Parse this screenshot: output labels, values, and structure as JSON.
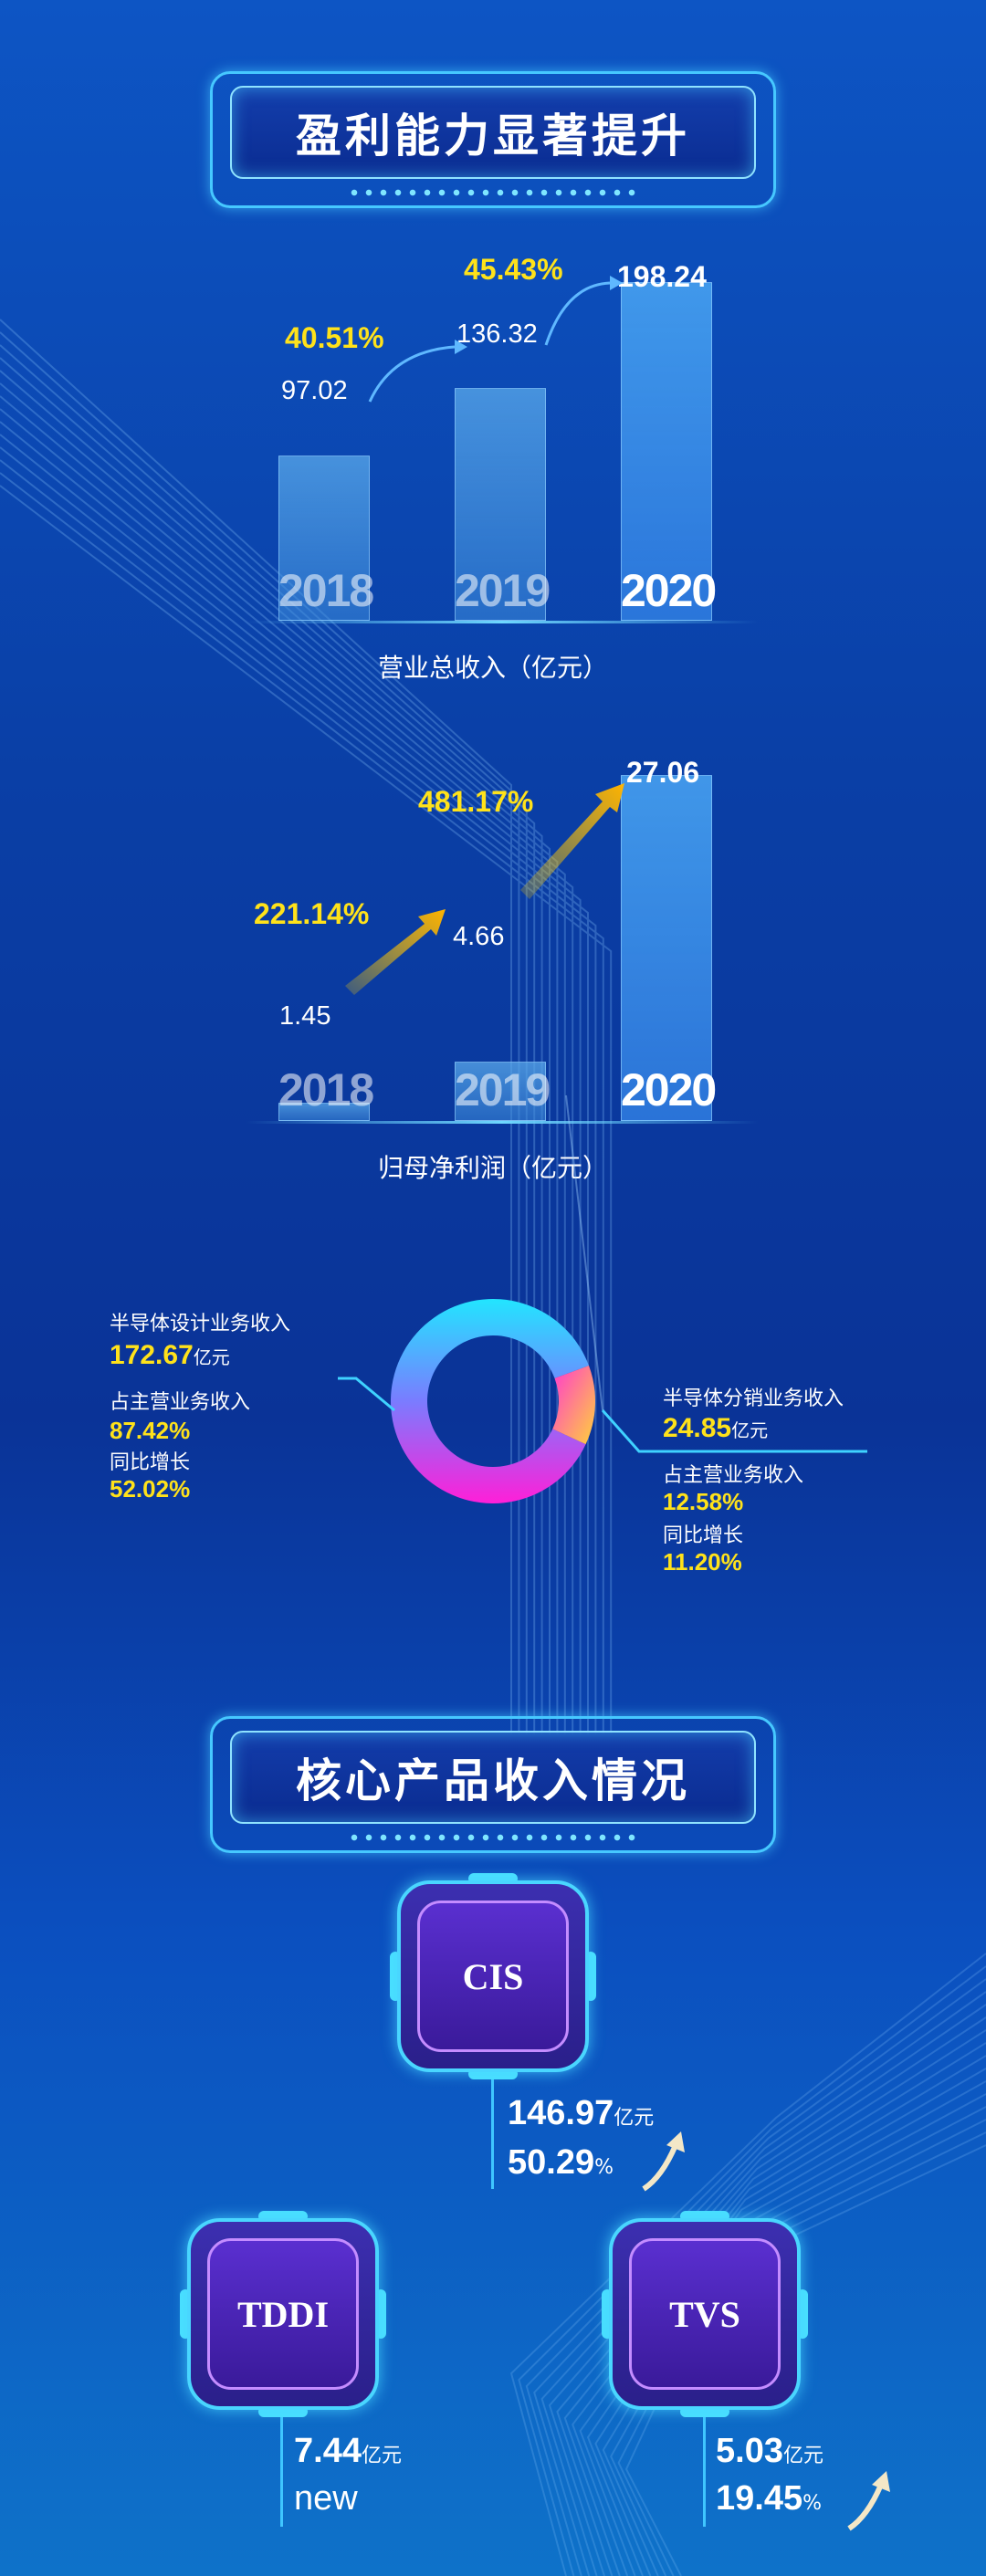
{
  "section1": {
    "title": "盈利能力显著提升"
  },
  "section2": {
    "title": "核心产品收入情况"
  },
  "chart_data": [
    {
      "type": "bar",
      "xlabel": "营业总收入（亿元）",
      "categories": [
        "2018",
        "2019",
        "2020"
      ],
      "values": [
        97.02,
        136.32,
        198.24
      ],
      "value_labels": [
        "97.02",
        "136.32",
        "198.24"
      ],
      "growth_labels": [
        "40.51%",
        "45.43%"
      ],
      "ylim": [
        0,
        215
      ]
    },
    {
      "type": "bar",
      "xlabel": "归母净利润（亿元）",
      "categories": [
        "2018",
        "2019",
        "2020"
      ],
      "values": [
        1.45,
        4.66,
        27.06
      ],
      "value_labels": [
        "1.45",
        "4.66",
        "27.06"
      ],
      "growth_labels": [
        "221.14%",
        "481.17%"
      ],
      "ylim": [
        0,
        30
      ]
    },
    {
      "type": "pie",
      "slices": [
        {
          "name": "半导体设计业务收入",
          "value": 172.67,
          "value_text": "172.67",
          "unit": "亿元",
          "share_label": "占主营业务收入",
          "share": "87.42%",
          "growth_label": "同比增长",
          "growth": "52.02%",
          "percent": 87.42
        },
        {
          "name": "半导体分销业务收入",
          "value": 24.85,
          "value_text": "24.85",
          "unit": "亿元",
          "share_label": "占主营业务收入",
          "share": "12.58%",
          "growth_label": "同比增长",
          "growth": "11.20%",
          "percent": 12.58
        }
      ]
    }
  ],
  "products": [
    {
      "name": "CIS",
      "value": "146.97",
      "unit": "亿元",
      "growth": "50.29",
      "growth_unit": "%"
    },
    {
      "name": "TDDI",
      "value": "7.44",
      "unit": "亿元",
      "growth": "new",
      "growth_unit": ""
    },
    {
      "name": "TVS",
      "value": "5.03",
      "unit": "亿元",
      "growth": "19.45",
      "growth_unit": "%"
    }
  ]
}
